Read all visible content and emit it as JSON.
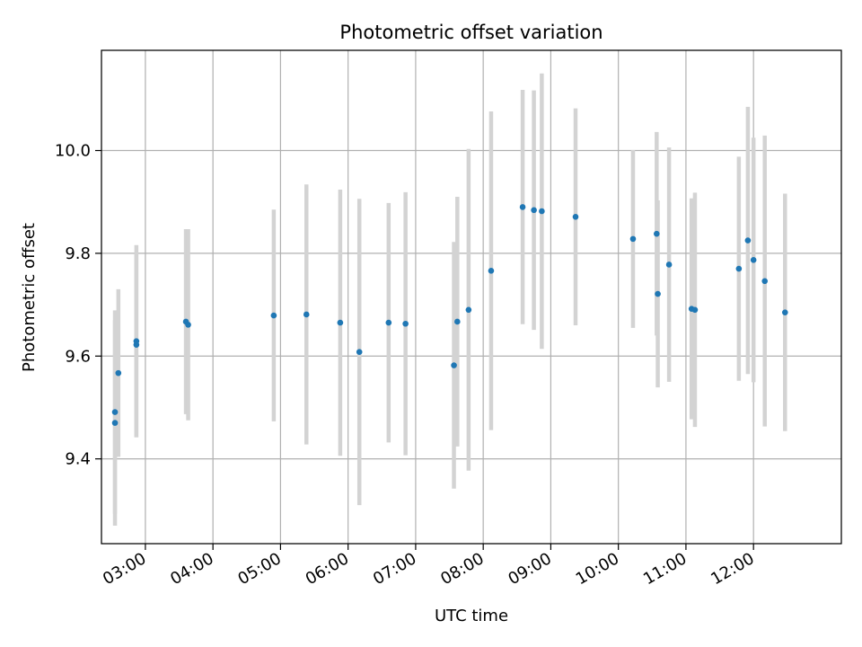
{
  "chart_data": {
    "type": "scatter",
    "title": "Photometric offset variation",
    "xlabel": "UTC time",
    "ylabel": "Photometric offset",
    "xlim": [
      "02:21",
      "13:18"
    ],
    "ylim": [
      9.235,
      10.195
    ],
    "x_ticks": [
      "03:00",
      "04:00",
      "05:00",
      "06:00",
      "07:00",
      "08:00",
      "09:00",
      "10:00",
      "11:00",
      "12:00"
    ],
    "y_ticks": [
      "9.4",
      "9.6",
      "9.8",
      "10.0"
    ],
    "grid": true,
    "colors": {
      "point": "#1f77b4",
      "errorbar": "#d3d3d3",
      "grid": "#b0b0b0"
    },
    "series": [
      {
        "points": [
          {
            "x": "02:33",
            "y": 9.491,
            "yerr": 0.198
          },
          {
            "x": "02:33",
            "y": 9.47,
            "yerr": 0.2
          },
          {
            "x": "02:36",
            "y": 9.567,
            "yerr": 0.163
          },
          {
            "x": "02:52",
            "y": 9.629,
            "yerr": 0.187
          },
          {
            "x": "02:52",
            "y": 9.622,
            "yerr": 0.18
          },
          {
            "x": "03:36",
            "y": 9.667,
            "yerr": 0.18
          },
          {
            "x": "03:38",
            "y": 9.661,
            "yerr": 0.186
          },
          {
            "x": "04:54",
            "y": 9.679,
            "yerr": 0.206
          },
          {
            "x": "05:23",
            "y": 9.681,
            "yerr": 0.253
          },
          {
            "x": "05:53",
            "y": 9.665,
            "yerr": 0.259
          },
          {
            "x": "06:10",
            "y": 9.608,
            "yerr": 0.298
          },
          {
            "x": "06:36",
            "y": 9.665,
            "yerr": 0.233
          },
          {
            "x": "06:51",
            "y": 9.663,
            "yerr": 0.256
          },
          {
            "x": "07:34",
            "y": 9.582,
            "yerr": 0.24
          },
          {
            "x": "07:37",
            "y": 9.667,
            "yerr": 0.243
          },
          {
            "x": "07:47",
            "y": 9.69,
            "yerr": 0.313
          },
          {
            "x": "08:07",
            "y": 9.766,
            "yerr": 0.31
          },
          {
            "x": "08:35",
            "y": 9.89,
            "yerr": 0.228
          },
          {
            "x": "08:45",
            "y": 9.884,
            "yerr": 0.233
          },
          {
            "x": "08:52",
            "y": 9.882,
            "yerr": 0.268
          },
          {
            "x": "09:22",
            "y": 9.871,
            "yerr": 0.211
          },
          {
            "x": "10:13",
            "y": 9.828,
            "yerr": 0.173
          },
          {
            "x": "10:34",
            "y": 9.838,
            "yerr": 0.198
          },
          {
            "x": "10:35",
            "y": 9.721,
            "yerr": 0.182
          },
          {
            "x": "10:45",
            "y": 9.778,
            "yerr": 0.228
          },
          {
            "x": "11:05",
            "y": 9.692,
            "yerr": 0.215
          },
          {
            "x": "11:08",
            "y": 9.69,
            "yerr": 0.228
          },
          {
            "x": "11:47",
            "y": 9.77,
            "yerr": 0.218
          },
          {
            "x": "11:55",
            "y": 9.825,
            "yerr": 0.26
          },
          {
            "x": "12:00",
            "y": 9.787,
            "yerr": 0.238
          },
          {
            "x": "12:10",
            "y": 9.746,
            "yerr": 0.283
          },
          {
            "x": "12:28",
            "y": 9.685,
            "yerr": 0.231
          }
        ]
      }
    ]
  }
}
